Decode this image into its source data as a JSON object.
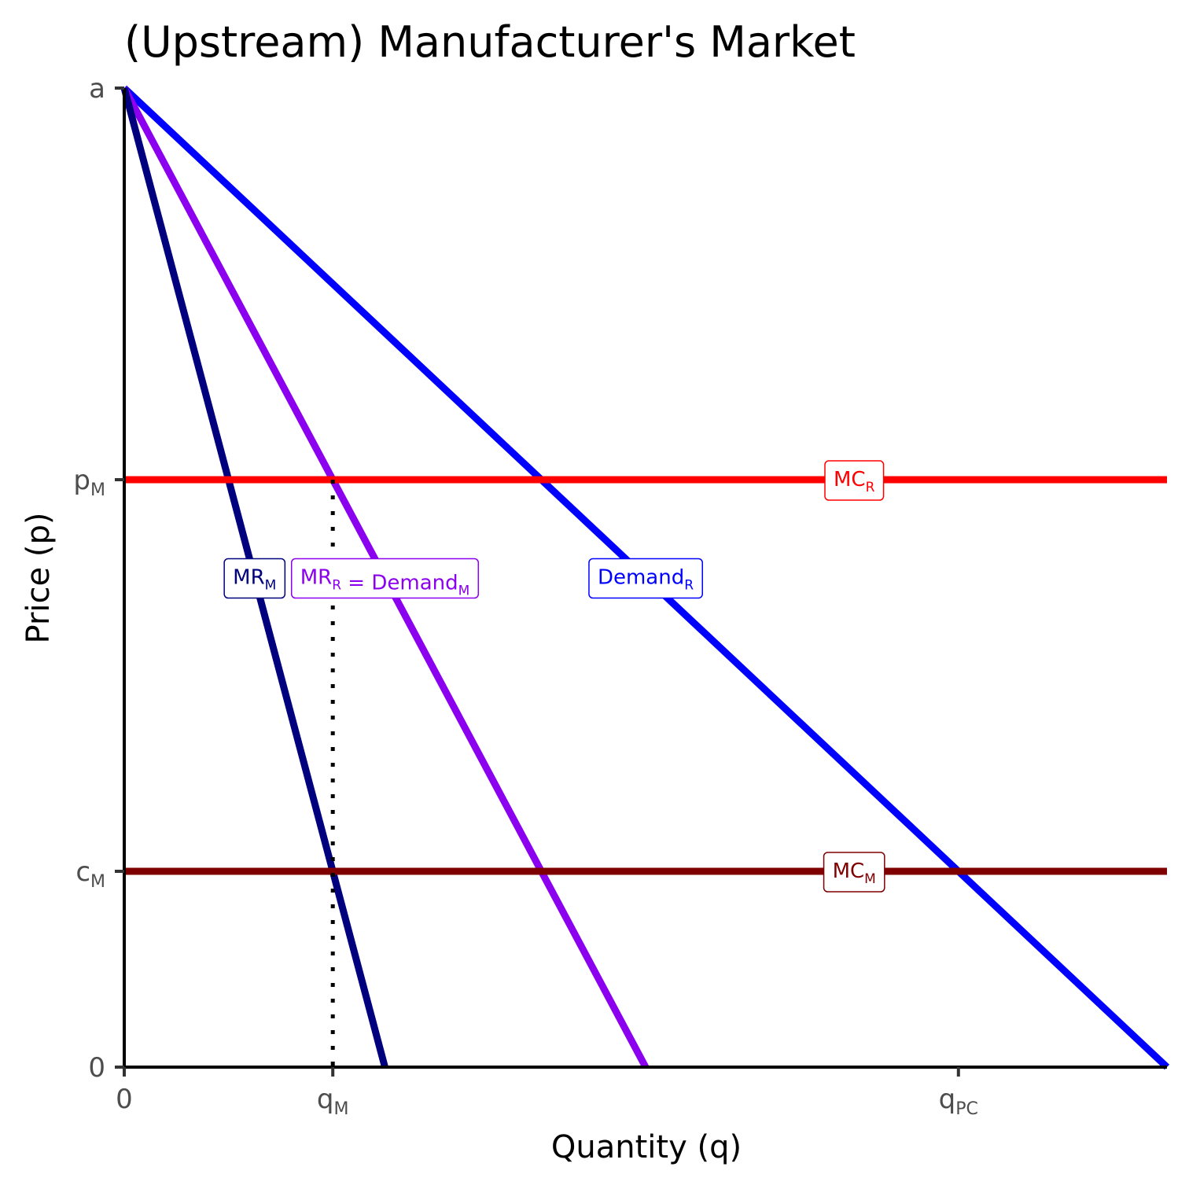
{
  "chart_data": {
    "type": "line",
    "title": "(Upstream) Manufacturer's Market",
    "xlabel": "Quantity (q)",
    "ylabel": "Price (p)",
    "xlim": [
      0,
      100
    ],
    "ylim": [
      0,
      100
    ],
    "grid": false,
    "x_ticks": [
      {
        "value": 0,
        "main": "0",
        "sub": ""
      },
      {
        "value": 20,
        "main": "q",
        "sub": "M"
      },
      {
        "value": 80,
        "main": "q",
        "sub": "PC"
      }
    ],
    "y_ticks": [
      {
        "value": 0,
        "main": "0",
        "sub": ""
      },
      {
        "value": 20,
        "main": "c",
        "sub": "M"
      },
      {
        "value": 60,
        "main": "p",
        "sub": "M"
      },
      {
        "value": 100,
        "main": "a",
        "sub": ""
      }
    ],
    "series": [
      {
        "name": "Demand_R",
        "color": "#0000ff",
        "style": "solid",
        "x": [
          0,
          100
        ],
        "y": [
          100,
          0
        ],
        "label": {
          "parts": [
            {
              "t": "Demand",
              "s": "R"
            }
          ],
          "x": 50,
          "y": 50
        }
      },
      {
        "name": "MR_R = Demand_M",
        "color": "#8b00ee",
        "style": "solid",
        "x": [
          0,
          50
        ],
        "y": [
          100,
          0
        ],
        "label": {
          "parts": [
            {
              "t": "MR",
              "s": "R"
            },
            {
              "t": " = ",
              "s": ""
            },
            {
              "t": "Demand",
              "s": "M"
            }
          ],
          "x": 25,
          "y": 50
        }
      },
      {
        "name": "MR_M",
        "color": "#00007f",
        "style": "solid",
        "x": [
          0,
          25
        ],
        "y": [
          100,
          0
        ],
        "label": {
          "parts": [
            {
              "t": "MR",
              "s": "M"
            }
          ],
          "x": 12.5,
          "y": 50
        }
      },
      {
        "name": "MC_R",
        "color": "#ff0000",
        "style": "solid",
        "x": [
          0,
          100
        ],
        "y": [
          60,
          60
        ],
        "label": {
          "parts": [
            {
              "t": "MC",
              "s": "R"
            }
          ],
          "x": 70,
          "y": 60
        }
      },
      {
        "name": "MC_M",
        "color": "#7f0000",
        "style": "solid",
        "x": [
          0,
          100
        ],
        "y": [
          20,
          20
        ],
        "label": {
          "parts": [
            {
              "t": "MC",
              "s": "M"
            }
          ],
          "x": 70,
          "y": 20
        }
      },
      {
        "name": "q_M guide",
        "color": "#000000",
        "style": "dotted",
        "x": [
          20,
          20
        ],
        "y": [
          60,
          0
        ]
      }
    ]
  }
}
